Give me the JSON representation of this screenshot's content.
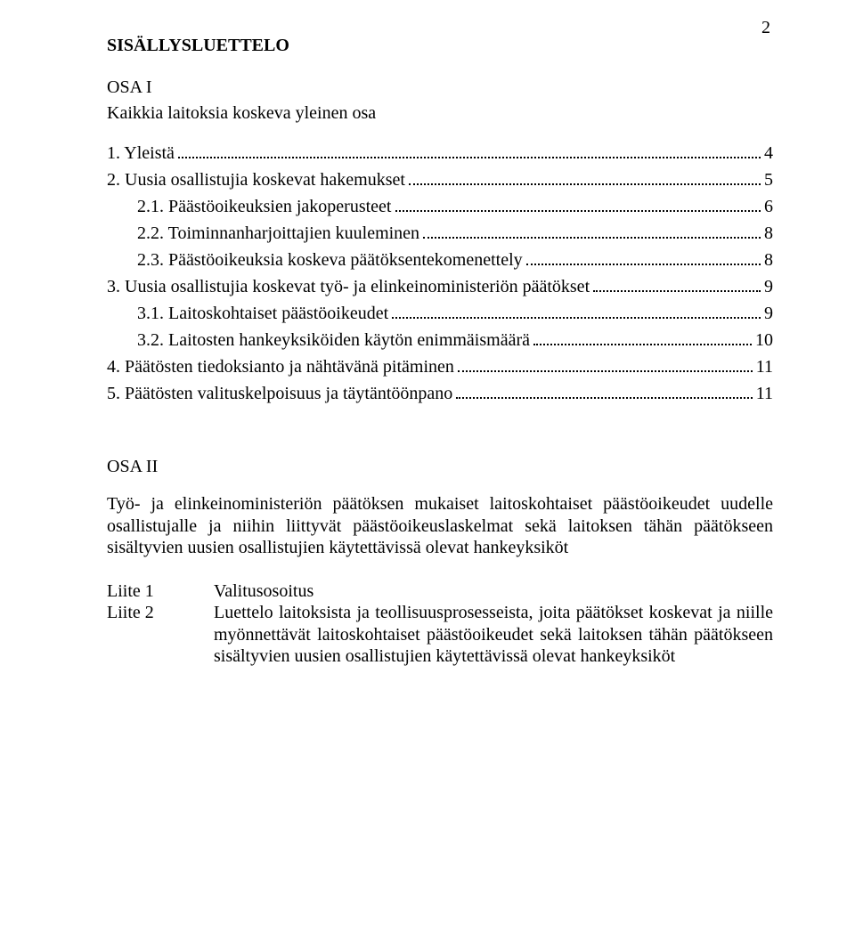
{
  "pageNumber": "2",
  "title": "SISÄLLYSLUETTELO",
  "osa1": {
    "head": "OSA I",
    "subtitle": "Kaikkia laitoksia koskeva yleinen osa",
    "toc": [
      {
        "label": "1. Yleistä",
        "page": "4",
        "indent": false
      },
      {
        "label": "2. Uusia osallistujia koskevat hakemukset",
        "page": "5",
        "indent": false
      },
      {
        "label": "2.1. Päästöoikeuksien jakoperusteet",
        "page": "6",
        "indent": true
      },
      {
        "label": "2.2. Toiminnanharjoittajien kuuleminen",
        "page": "8",
        "indent": true
      },
      {
        "label": "2.3. Päästöoikeuksia koskeva päätöksentekomenettely",
        "page": "8",
        "indent": true
      },
      {
        "label": "3. Uusia osallistujia koskevat työ- ja elinkeinoministeriön päätökset",
        "page": "9",
        "indent": false
      },
      {
        "label": "3.1. Laitoskohtaiset päästöoikeudet",
        "page": "9",
        "indent": true
      },
      {
        "label": "3.2. Laitosten hankeyksiköiden käytön enimmäismäärä",
        "page": "10",
        "indent": true
      },
      {
        "label": "4. Päätösten tiedoksianto ja nähtävänä pitäminen",
        "page": "11",
        "indent": false
      },
      {
        "label": "5. Päätösten valituskelpoisuus ja täytäntöönpano",
        "page": "11",
        "indent": false
      }
    ]
  },
  "osa2": {
    "head": "OSA II",
    "body": "Työ- ja elinkeinoministeriön päätöksen mukaiset laitoskohtaiset päästöoikeudet uudelle osallistujalle ja niihin liittyvät päästöoikeuslaskelmat sekä laitoksen tähän päätökseen sisältyvien uusien osallistujien käytettävissä olevat hankeyksiköt"
  },
  "liitteet": [
    {
      "label": "Liite 1",
      "text": "Valitusosoitus"
    },
    {
      "label": "Liite 2",
      "text": "Luettelo laitoksista ja teollisuusprosesseista, joita päätökset koskevat ja niille myönnettävät laitoskohtaiset päästöoikeudet sekä laitoksen tähän päätökseen sisältyvien uusien osallistujien käytettävissä olevat hankeyksiköt"
    }
  ]
}
